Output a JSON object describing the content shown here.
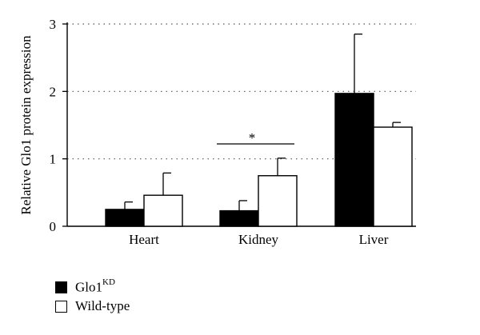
{
  "chart_data": {
    "type": "bar",
    "categories": [
      "Heart",
      "Kidney",
      "Liver"
    ],
    "series": [
      {
        "name": "Glo1",
        "name_sup": "KD",
        "color": "#000000",
        "values": [
          0.25,
          0.23,
          1.97
        ],
        "errors": [
          0.11,
          0.15,
          0.88
        ]
      },
      {
        "name": "Wild-type",
        "color": "#ffffff",
        "values": [
          0.46,
          0.75,
          1.47
        ],
        "errors": [
          0.33,
          0.26,
          0.07
        ]
      }
    ],
    "ylabel": "Relative Glo1 protein expression",
    "ylim": [
      0,
      3
    ],
    "yticks": [
      "0",
      "1",
      "2",
      "3"
    ],
    "grid": "dotted horizontal at ticks",
    "significance": {
      "between": "Kidney",
      "symbol": "*"
    },
    "legend_position": "bottom-left"
  }
}
